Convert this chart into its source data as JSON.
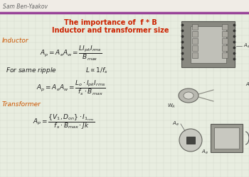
{
  "header_text": "Sam Ben-Yaakov",
  "header_bg": "#f0ece6",
  "header_line_color": "#994499",
  "bg_color": "#e8ede0",
  "grid_color": "#d0d8c8",
  "text_color": "#222222",
  "orange_color": "#cc5500",
  "red_color": "#cc2200",
  "title_line1": "The importance of  f * B",
  "title_line2": "Inductor and transformer size",
  "section_inductor": "Inductor",
  "section_transformer": "Transformer"
}
